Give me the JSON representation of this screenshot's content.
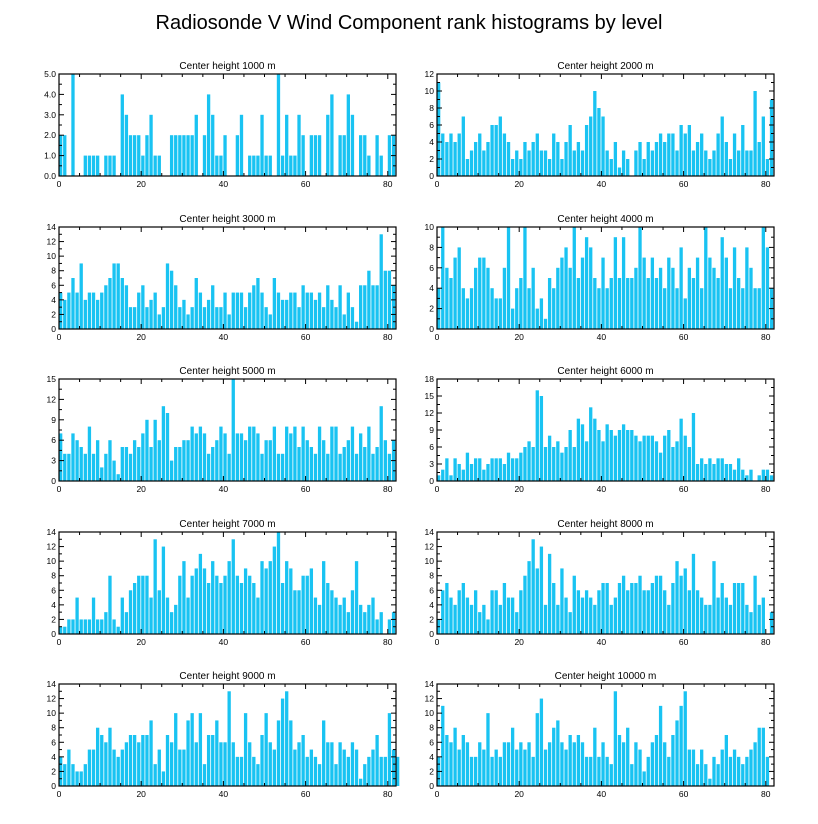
{
  "title": "Radiosonde V Wind Component rank histograms by level",
  "colors": {
    "bar": "#19C3F2",
    "bar_edge": "#ffffff",
    "axis": "#000000",
    "background": "#ffffff"
  },
  "chart_data": [
    {
      "type": "bar",
      "title": "Center height 1000 m",
      "xlim": [
        0,
        82
      ],
      "ylim": [
        0,
        5
      ],
      "xticks": [
        0,
        20,
        40,
        60,
        80
      ],
      "yticks": [
        0,
        1,
        2,
        3,
        4,
        5
      ],
      "ytick_labels": [
        "0.0",
        "1.0",
        "2.0",
        "3.0",
        "4.0",
        "5.0"
      ],
      "values": [
        2,
        2,
        0,
        5,
        0,
        0,
        1,
        1,
        1,
        1,
        0,
        1,
        1,
        1,
        0,
        4,
        3,
        2,
        2,
        2,
        1,
        2,
        3,
        1,
        1,
        0,
        0,
        2,
        2,
        2,
        2,
        2,
        2,
        3,
        0,
        2,
        4,
        3,
        1,
        1,
        2,
        0,
        0,
        2,
        3,
        0,
        1,
        1,
        1,
        3,
        1,
        1,
        0,
        5,
        1,
        3,
        1,
        1,
        3,
        2,
        0,
        2,
        2,
        2,
        0,
        3,
        4,
        0,
        2,
        2,
        4,
        3,
        0,
        2,
        2,
        1,
        0,
        2,
        1,
        0,
        2,
        2
      ]
    },
    {
      "type": "bar",
      "title": "Center height 2000 m",
      "xlim": [
        0,
        82
      ],
      "ylim": [
        0,
        12
      ],
      "xticks": [
        0,
        20,
        40,
        60,
        80
      ],
      "yticks": [
        0,
        2,
        4,
        6,
        8,
        10,
        12
      ],
      "ytick_labels": [
        "0",
        "2",
        "4",
        "6",
        "8",
        "10",
        "12"
      ],
      "values": [
        11,
        5,
        4,
        5,
        4,
        5,
        7,
        2,
        3,
        4,
        5,
        3,
        4,
        6,
        6,
        7,
        5,
        4,
        2,
        3,
        2,
        4,
        3,
        4,
        5,
        3,
        3,
        2,
        5,
        4,
        2,
        4,
        6,
        3,
        4,
        3,
        6,
        7,
        10,
        8,
        7,
        3,
        2,
        4,
        1,
        3,
        2,
        0,
        3,
        4,
        2,
        4,
        3,
        4,
        5,
        4,
        5,
        5,
        3,
        6,
        5,
        6,
        3,
        4,
        5,
        3,
        2,
        3,
        5,
        7,
        4,
        2,
        5,
        3,
        6,
        3,
        3,
        10,
        4,
        7,
        2,
        9
      ]
    },
    {
      "type": "bar",
      "title": "Center height 3000 m",
      "xlim": [
        0,
        82
      ],
      "ylim": [
        0,
        14
      ],
      "xticks": [
        0,
        20,
        40,
        60,
        80
      ],
      "yticks": [
        0,
        2,
        4,
        6,
        8,
        10,
        12,
        14
      ],
      "ytick_labels": [
        "0",
        "2",
        "4",
        "6",
        "8",
        "10",
        "12",
        "14"
      ],
      "values": [
        5,
        4,
        5,
        7,
        5,
        9,
        4,
        5,
        5,
        4,
        5,
        6,
        7,
        9,
        9,
        7,
        6,
        3,
        3,
        5,
        6,
        3,
        4,
        5,
        2,
        3,
        9,
        8,
        6,
        3,
        4,
        2,
        3,
        7,
        5,
        3,
        4,
        6,
        3,
        3,
        5,
        2,
        5,
        5,
        5,
        3,
        5,
        6,
        7,
        5,
        3,
        2,
        7,
        5,
        4,
        4,
        5,
        5,
        3,
        6,
        5,
        5,
        4,
        5,
        3,
        6,
        4,
        3,
        6,
        2,
        5,
        3,
        1,
        6,
        6,
        8,
        6,
        6,
        13,
        8,
        8,
        6
      ]
    },
    {
      "type": "bar",
      "title": "Center height 4000 m",
      "xlim": [
        0,
        82
      ],
      "ylim": [
        0,
        10
      ],
      "xticks": [
        0,
        20,
        40,
        60,
        80
      ],
      "yticks": [
        0,
        2,
        4,
        6,
        8,
        10
      ],
      "ytick_labels": [
        "0",
        "2",
        "4",
        "6",
        "8",
        "10"
      ],
      "values": [
        4,
        10,
        6,
        5,
        7,
        8,
        4,
        3,
        4,
        6,
        7,
        7,
        6,
        4,
        3,
        3,
        6,
        10,
        2,
        4,
        5,
        10,
        4,
        6,
        2,
        3,
        1,
        5,
        4,
        6,
        7,
        8,
        6,
        10,
        5,
        7,
        9,
        8,
        5,
        4,
        7,
        4,
        5,
        9,
        5,
        9,
        5,
        5,
        6,
        10,
        7,
        5,
        7,
        5,
        6,
        4,
        7,
        6,
        4,
        8,
        3,
        6,
        5,
        7,
        4,
        10,
        7,
        6,
        5,
        9,
        7,
        4,
        8,
        5,
        4,
        8,
        6,
        4,
        4,
        10,
        8,
        4
      ]
    },
    {
      "type": "bar",
      "title": "Center height 5000 m",
      "xlim": [
        0,
        82
      ],
      "ylim": [
        0,
        15
      ],
      "xticks": [
        0,
        20,
        40,
        60,
        80
      ],
      "yticks": [
        0,
        3,
        6,
        9,
        12,
        15
      ],
      "ytick_labels": [
        "0",
        "3",
        "6",
        "9",
        "12",
        "15"
      ],
      "values": [
        7,
        4,
        4,
        7,
        6,
        5,
        4,
        8,
        4,
        6,
        2,
        4,
        6,
        3,
        1,
        5,
        5,
        4,
        6,
        5,
        7,
        9,
        5,
        9,
        6,
        11,
        10,
        3,
        5,
        5,
        6,
        6,
        8,
        7,
        8,
        7,
        4,
        5,
        6,
        8,
        7,
        4,
        15,
        7,
        7,
        6,
        8,
        8,
        7,
        4,
        6,
        6,
        8,
        4,
        4,
        8,
        7,
        8,
        5,
        8,
        6,
        5,
        4,
        8,
        6,
        4,
        8,
        8,
        4,
        5,
        6,
        8,
        4,
        7,
        5,
        8,
        4,
        5,
        11,
        6,
        4,
        6
      ]
    },
    {
      "type": "bar",
      "title": "Center height 6000 m",
      "xlim": [
        0,
        82
      ],
      "ylim": [
        0,
        18
      ],
      "xticks": [
        0,
        20,
        40,
        60,
        80
      ],
      "yticks": [
        0,
        3,
        6,
        9,
        12,
        15,
        18
      ],
      "ytick_labels": [
        "0",
        "3",
        "6",
        "9",
        "12",
        "15",
        "18"
      ],
      "values": [
        1,
        2,
        4,
        1,
        4,
        3,
        2,
        5,
        3,
        4,
        4,
        2,
        3,
        4,
        4,
        4,
        3,
        5,
        4,
        4,
        5,
        6,
        7,
        6,
        16,
        15,
        6,
        8,
        6,
        7,
        5,
        6,
        9,
        6,
        11,
        10,
        7,
        13,
        11,
        9,
        7,
        10,
        9,
        8,
        9,
        10,
        9,
        9,
        8,
        7,
        8,
        8,
        8,
        7,
        5,
        8,
        9,
        6,
        7,
        11,
        8,
        6,
        12,
        3,
        4,
        3,
        4,
        3,
        4,
        4,
        3,
        3,
        2,
        4,
        2,
        1,
        2,
        0,
        1,
        2,
        2,
        1
      ]
    },
    {
      "type": "bar",
      "title": "Center height 7000 m",
      "xlim": [
        0,
        82
      ],
      "ylim": [
        0,
        14
      ],
      "xticks": [
        0,
        20,
        40,
        60,
        80
      ],
      "yticks": [
        0,
        2,
        4,
        6,
        8,
        10,
        12,
        14
      ],
      "ytick_labels": [
        "0",
        "2",
        "4",
        "6",
        "8",
        "10",
        "12",
        "14"
      ],
      "values": [
        1,
        1,
        2,
        2,
        5,
        2,
        2,
        2,
        5,
        2,
        2,
        3,
        8,
        2,
        1,
        5,
        3,
        6,
        7,
        8,
        8,
        8,
        5,
        13,
        6,
        12,
        5,
        3,
        4,
        8,
        10,
        5,
        8,
        9,
        11,
        9,
        7,
        10,
        8,
        7,
        8,
        10,
        13,
        8,
        7,
        9,
        8,
        7,
        5,
        10,
        9,
        10,
        12,
        14,
        7,
        10,
        9,
        6,
        6,
        8,
        8,
        9,
        5,
        4,
        10,
        7,
        6,
        5,
        4,
        5,
        3,
        6,
        10,
        4,
        3,
        4,
        5,
        2,
        3,
        0,
        2,
        3
      ]
    },
    {
      "type": "bar",
      "title": "Center height 8000 m",
      "xlim": [
        0,
        82
      ],
      "ylim": [
        0,
        14
      ],
      "xticks": [
        0,
        20,
        40,
        60,
        80
      ],
      "yticks": [
        0,
        2,
        4,
        6,
        8,
        10,
        12,
        14
      ],
      "ytick_labels": [
        "0",
        "2",
        "4",
        "6",
        "8",
        "10",
        "12",
        "14"
      ],
      "values": [
        2,
        6,
        7,
        5,
        4,
        6,
        7,
        5,
        4,
        6,
        3,
        4,
        2,
        6,
        6,
        4,
        7,
        5,
        5,
        3,
        6,
        8,
        10,
        13,
        9,
        12,
        4,
        11,
        7,
        4,
        9,
        5,
        3,
        8,
        6,
        5,
        6,
        5,
        4,
        6,
        7,
        7,
        4,
        5,
        7,
        8,
        6,
        7,
        7,
        8,
        6,
        6,
        7,
        8,
        8,
        6,
        4,
        7,
        10,
        8,
        9,
        6,
        11,
        6,
        5,
        4,
        4,
        10,
        5,
        7,
        5,
        4,
        7,
        7,
        7,
        4,
        3,
        8,
        4,
        5,
        0,
        3
      ]
    },
    {
      "type": "bar",
      "title": "Center height 9000 m",
      "xlim": [
        0,
        82
      ],
      "ylim": [
        0,
        14
      ],
      "xticks": [
        0,
        20,
        40,
        60,
        80
      ],
      "yticks": [
        0,
        2,
        4,
        6,
        8,
        10,
        12,
        14
      ],
      "ytick_labels": [
        "0",
        "2",
        "4",
        "6",
        "8",
        "10",
        "12",
        "14"
      ],
      "values": [
        4,
        3,
        5,
        3,
        2,
        2,
        3,
        5,
        5,
        8,
        7,
        6,
        8,
        5,
        4,
        5,
        6,
        7,
        7,
        6,
        7,
        7,
        9,
        3,
        5,
        2,
        7,
        6,
        10,
        5,
        5,
        9,
        10,
        6,
        10,
        3,
        7,
        7,
        9,
        6,
        6,
        13,
        6,
        4,
        4,
        10,
        6,
        4,
        3,
        7,
        10,
        6,
        5,
        9,
        12,
        13,
        9,
        5,
        6,
        7,
        4,
        5,
        4,
        3,
        9,
        6,
        6,
        3,
        6,
        5,
        4,
        6,
        5,
        1,
        3,
        4,
        5,
        7,
        4,
        4,
        10,
        5,
        4
      ]
    },
    {
      "type": "bar",
      "title": "Center height 10000 m",
      "xlim": [
        0,
        82
      ],
      "ylim": [
        0,
        14
      ],
      "xticks": [
        0,
        20,
        40,
        60,
        80
      ],
      "yticks": [
        0,
        2,
        4,
        6,
        8,
        10,
        12,
        14
      ],
      "ytick_labels": [
        "0",
        "2",
        "4",
        "6",
        "8",
        "10",
        "12",
        "14"
      ],
      "values": [
        4,
        11,
        7,
        6,
        8,
        5,
        7,
        6,
        4,
        4,
        6,
        5,
        10,
        4,
        5,
        4,
        6,
        6,
        8,
        5,
        6,
        5,
        6,
        4,
        10,
        12,
        5,
        6,
        8,
        9,
        6,
        5,
        7,
        6,
        7,
        6,
        4,
        4,
        8,
        4,
        6,
        4,
        3,
        13,
        7,
        6,
        8,
        3,
        6,
        5,
        2,
        4,
        6,
        7,
        11,
        6,
        4,
        7,
        9,
        11,
        13,
        5,
        5,
        3,
        5,
        3,
        1,
        4,
        3,
        5,
        7,
        4,
        5,
        4,
        3,
        4,
        5,
        6,
        8,
        8,
        4
      ]
    }
  ]
}
